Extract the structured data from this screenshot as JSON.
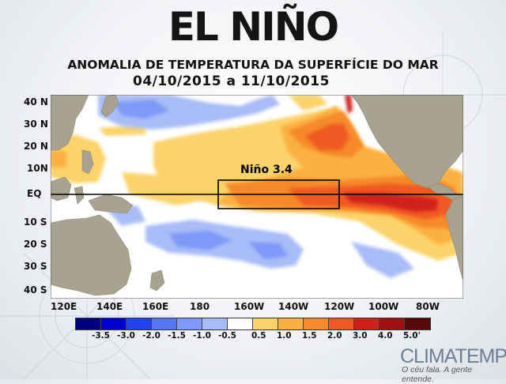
{
  "header": {
    "title": "EL NIÑO",
    "subtitle": "ANOMALIA DE TEMPERATURA DA SUPERFÍCIE DO MAR",
    "date_range": "04/10/2015 a 11/10/2015"
  },
  "map": {
    "region_label": "Niño 3.4",
    "lat_labels": [
      "40 N",
      "30 N",
      "20 N",
      "10N",
      "EQ",
      "10 S",
      "20 S",
      "30 S",
      "40 S"
    ],
    "lon_labels": [
      "120E",
      "140E",
      "160E",
      "180",
      "160W",
      "140W",
      "120W",
      "100W",
      "80W"
    ],
    "colors": {
      "ocean": "#ffffff",
      "land": "#a8a390",
      "equator_line": "#000000"
    }
  },
  "legend": {
    "values": [
      "-3.5",
      "-3.0",
      "-2.0",
      "-1.5",
      "-1.0",
      "-0.5",
      "0.5",
      "1.0",
      "1.5",
      "2.0",
      "3.0",
      "4.0",
      "5.0'"
    ],
    "colors": [
      "#000080",
      "#0000cc",
      "#2244ee",
      "#5577f5",
      "#7e99f7",
      "#a8bcf7",
      "#ffffff",
      "#fcd36a",
      "#fbb043",
      "#f68a2c",
      "#ef5a22",
      "#d0201a",
      "#9e1111",
      "#5a0909"
    ]
  },
  "brand": {
    "name": "CLIMATEMPO",
    "slogan": "O céu fala. A gente entende."
  }
}
